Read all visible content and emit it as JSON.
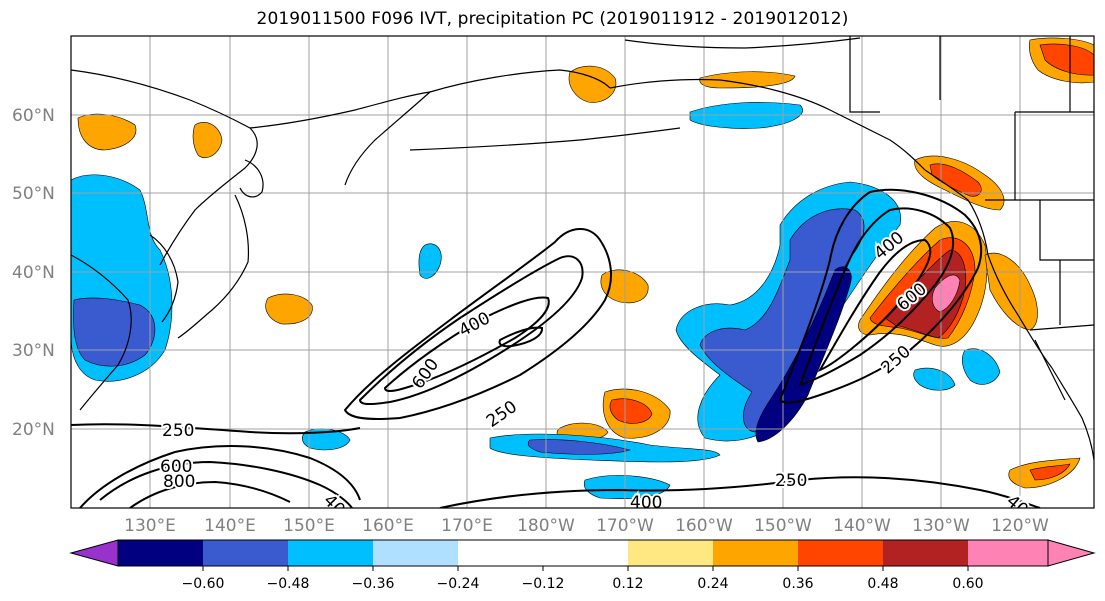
{
  "title": "2019011500 F096 IVT, precipitation PC (2019011912 - 2019012012)",
  "lat_labels": [
    "20°N",
    "30°N",
    "40°N",
    "50°N",
    "60°N"
  ],
  "lon_labels": [
    "130°E",
    "140°E",
    "150°E",
    "160°E",
    "170°E",
    "180°W",
    "170°W",
    "160°W",
    "150°W",
    "140°W",
    "130°W",
    "120°W"
  ],
  "ivt_contour_labels": [
    "250",
    "400",
    "600",
    "800",
    "400",
    "250",
    "400",
    "600",
    "250",
    "400"
  ],
  "colorbar": {
    "colors": [
      "#9932cc",
      "#000080",
      "#3a5bd0",
      "#00bfff",
      "#b0e0ff",
      "#ffffff",
      "#ffe882",
      "#ffa500",
      "#ff4500",
      "#b22222",
      "#ff82b4"
    ],
    "tick_labels": [
      "−0.60",
      "−0.48",
      "−0.36",
      "−0.24",
      "−0.12",
      "0.12",
      "0.24",
      "0.36",
      "0.48",
      "0.60"
    ]
  }
}
